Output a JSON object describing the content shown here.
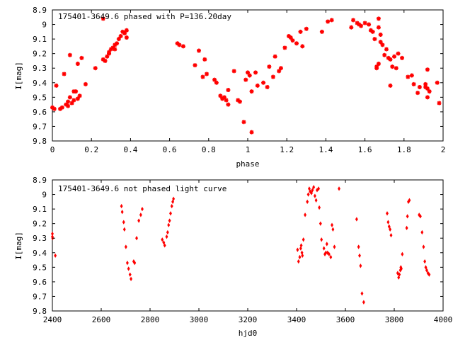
{
  "chart_data": [
    {
      "type": "scatter",
      "title": "175401-3649.6 phased with P=136.20day",
      "xlabel": "phase",
      "ylabel": "I[mag]",
      "xlim": [
        0,
        2
      ],
      "ylim": [
        8.9,
        9.8
      ],
      "y_reversed": true,
      "grid": false,
      "marker_color": "#ff0000",
      "marker": "star",
      "x_ticks": [
        "0",
        "0.2",
        "0.4",
        "0.6",
        "0.8",
        "1",
        "1.2",
        "1.4",
        "1.6",
        "1.8",
        "2"
      ],
      "y_ticks": [
        "8.9",
        "9",
        "9.1",
        "9.2",
        "9.3",
        "9.4",
        "9.5",
        "9.6",
        "9.7",
        "9.8"
      ],
      "points": [
        [
          0.0,
          9.57
        ],
        [
          0.01,
          9.58
        ],
        [
          0.02,
          9.42
        ],
        [
          0.04,
          9.58
        ],
        [
          0.05,
          9.57
        ],
        [
          0.06,
          9.34
        ],
        [
          0.07,
          9.55
        ],
        [
          0.08,
          9.53
        ],
        [
          0.08,
          9.56
        ],
        [
          0.09,
          9.5
        ],
        [
          0.09,
          9.21
        ],
        [
          0.1,
          9.54
        ],
        [
          0.11,
          9.46
        ],
        [
          0.11,
          9.52
        ],
        [
          0.12,
          9.46
        ],
        [
          0.13,
          9.51
        ],
        [
          0.13,
          9.27
        ],
        [
          0.14,
          9.49
        ],
        [
          0.15,
          9.23
        ],
        [
          0.17,
          9.41
        ],
        [
          0.22,
          9.3
        ],
        [
          0.26,
          8.96
        ],
        [
          0.26,
          9.24
        ],
        [
          0.27,
          9.25
        ],
        [
          0.28,
          9.22
        ],
        [
          0.29,
          9.2
        ],
        [
          0.29,
          9.19
        ],
        [
          0.3,
          9.17
        ],
        [
          0.31,
          9.16
        ],
        [
          0.32,
          9.14
        ],
        [
          0.32,
          9.17
        ],
        [
          0.33,
          9.13
        ],
        [
          0.34,
          9.1
        ],
        [
          0.35,
          9.08
        ],
        [
          0.36,
          9.05
        ],
        [
          0.37,
          9.06
        ],
        [
          0.38,
          9.04
        ],
        [
          0.38,
          9.09
        ],
        [
          0.64,
          9.13
        ],
        [
          0.65,
          9.14
        ],
        [
          0.67,
          9.15
        ],
        [
          0.73,
          9.28
        ],
        [
          0.75,
          9.18
        ],
        [
          0.77,
          9.36
        ],
        [
          0.78,
          9.24
        ],
        [
          0.79,
          9.34
        ],
        [
          0.83,
          9.38
        ],
        [
          0.84,
          9.4
        ],
        [
          0.86,
          9.49
        ],
        [
          0.87,
          9.51
        ],
        [
          0.88,
          9.5
        ],
        [
          0.89,
          9.52
        ],
        [
          0.9,
          9.55
        ],
        [
          0.9,
          9.45
        ],
        [
          0.93,
          9.32
        ],
        [
          0.95,
          9.52
        ],
        [
          0.96,
          9.53
        ],
        [
          0.98,
          9.67
        ],
        [
          0.99,
          9.38
        ],
        [
          1.0,
          9.33
        ],
        [
          1.01,
          9.35
        ],
        [
          1.02,
          9.74
        ],
        [
          1.02,
          9.46
        ],
        [
          1.04,
          9.33
        ],
        [
          1.05,
          9.42
        ],
        [
          1.08,
          9.4
        ],
        [
          1.1,
          9.43
        ],
        [
          1.11,
          9.29
        ],
        [
          1.13,
          9.36
        ],
        [
          1.14,
          9.22
        ],
        [
          1.16,
          9.32
        ],
        [
          1.17,
          9.3
        ],
        [
          1.19,
          9.16
        ],
        [
          1.21,
          9.08
        ],
        [
          1.22,
          9.09
        ],
        [
          1.23,
          9.11
        ],
        [
          1.25,
          9.13
        ],
        [
          1.27,
          9.05
        ],
        [
          1.28,
          9.15
        ],
        [
          1.3,
          9.03
        ],
        [
          1.38,
          9.05
        ],
        [
          1.41,
          8.98
        ],
        [
          1.43,
          8.97
        ],
        [
          1.53,
          9.02
        ],
        [
          1.54,
          8.97
        ],
        [
          1.56,
          8.99
        ],
        [
          1.57,
          9.0
        ],
        [
          1.58,
          9.01
        ],
        [
          1.6,
          8.99
        ],
        [
          1.62,
          9.0
        ],
        [
          1.63,
          9.04
        ],
        [
          1.64,
          9.05
        ],
        [
          1.65,
          9.1
        ],
        [
          1.66,
          9.3
        ],
        [
          1.66,
          9.29
        ],
        [
          1.67,
          9.27
        ],
        [
          1.67,
          8.96
        ],
        [
          1.67,
          9.02
        ],
        [
          1.68,
          9.12
        ],
        [
          1.68,
          9.07
        ],
        [
          1.69,
          9.14
        ],
        [
          1.7,
          9.21
        ],
        [
          1.71,
          9.17
        ],
        [
          1.72,
          9.23
        ],
        [
          1.73,
          9.24
        ],
        [
          1.73,
          9.42
        ],
        [
          1.74,
          9.29
        ],
        [
          1.75,
          9.22
        ],
        [
          1.76,
          9.3
        ],
        [
          1.77,
          9.2
        ],
        [
          1.79,
          9.23
        ],
        [
          1.82,
          9.36
        ],
        [
          1.84,
          9.35
        ],
        [
          1.85,
          9.41
        ],
        [
          1.87,
          9.47
        ],
        [
          1.88,
          9.43
        ],
        [
          1.91,
          9.41
        ],
        [
          1.91,
          9.43
        ],
        [
          1.92,
          9.31
        ],
        [
          1.92,
          9.44
        ],
        [
          1.92,
          9.5
        ],
        [
          1.93,
          9.46
        ],
        [
          1.97,
          9.4
        ],
        [
          1.98,
          9.54
        ]
      ]
    },
    {
      "type": "scatter",
      "title": "175401-3649.6 not phased light curve",
      "xlabel": "hjd0",
      "ylabel": "I[mag]",
      "xlim": [
        2400,
        4000
      ],
      "ylim": [
        8.9,
        9.8
      ],
      "y_reversed": true,
      "grid": false,
      "marker_color": "#ff0000",
      "marker": "diamond",
      "x_ticks": [
        "2400",
        "2600",
        "2800",
        "3000",
        "3200",
        "3400",
        "3600",
        "3800",
        "4000"
      ],
      "y_ticks": [
        "8.9",
        "9",
        "9.1",
        "9.2",
        "9.3",
        "9.4",
        "9.5",
        "9.6",
        "9.7",
        "9.8"
      ],
      "points": [
        [
          2400,
          9.27
        ],
        [
          2400,
          9.29
        ],
        [
          2401,
          9.3
        ],
        [
          2412,
          9.42
        ],
        [
          2683,
          9.08
        ],
        [
          2686,
          9.12
        ],
        [
          2692,
          9.19
        ],
        [
          2695,
          9.24
        ],
        [
          2701,
          9.36
        ],
        [
          2707,
          9.47
        ],
        [
          2712,
          9.51
        ],
        [
          2718,
          9.55
        ],
        [
          2722,
          9.58
        ],
        [
          2733,
          9.46
        ],
        [
          2737,
          9.47
        ],
        [
          2745,
          9.3
        ],
        [
          2754,
          9.18
        ],
        [
          2762,
          9.14
        ],
        [
          2768,
          9.1
        ],
        [
          2850,
          9.31
        ],
        [
          2856,
          9.33
        ],
        [
          2860,
          9.35
        ],
        [
          2868,
          9.29
        ],
        [
          2872,
          9.26
        ],
        [
          2876,
          9.21
        ],
        [
          2880,
          9.18
        ],
        [
          2884,
          9.13
        ],
        [
          2889,
          9.08
        ],
        [
          2893,
          9.05
        ],
        [
          2896,
          9.03
        ],
        [
          3404,
          9.38
        ],
        [
          3408,
          9.46
        ],
        [
          3413,
          9.43
        ],
        [
          3417,
          9.37
        ],
        [
          3419,
          9.35
        ],
        [
          3422,
          9.4
        ],
        [
          3424,
          9.42
        ],
        [
          3428,
          9.31
        ],
        [
          3435,
          9.14
        ],
        [
          3444,
          9.05
        ],
        [
          3448,
          9.0
        ],
        [
          3452,
          8.96
        ],
        [
          3456,
          8.98
        ],
        [
          3461,
          8.99
        ],
        [
          3465,
          8.97
        ],
        [
          3470,
          8.95
        ],
        [
          3475,
          9.01
        ],
        [
          3480,
          9.04
        ],
        [
          3484,
          8.97
        ],
        [
          3490,
          8.96
        ],
        [
          3493,
          9.09
        ],
        [
          3498,
          9.2
        ],
        [
          3502,
          9.31
        ],
        [
          3512,
          9.37
        ],
        [
          3516,
          9.41
        ],
        [
          3520,
          9.4
        ],
        [
          3524,
          9.34
        ],
        [
          3527,
          9.4
        ],
        [
          3533,
          9.41
        ],
        [
          3540,
          9.43
        ],
        [
          3545,
          9.21
        ],
        [
          3549,
          9.24
        ],
        [
          3555,
          9.36
        ],
        [
          3574,
          8.96
        ],
        [
          3646,
          9.17
        ],
        [
          3654,
          9.36
        ],
        [
          3658,
          9.42
        ],
        [
          3662,
          9.49
        ],
        [
          3668,
          9.68
        ],
        [
          3675,
          9.74
        ],
        [
          3771,
          9.13
        ],
        [
          3775,
          9.19
        ],
        [
          3779,
          9.22
        ],
        [
          3783,
          9.24
        ],
        [
          3787,
          9.28
        ],
        [
          3814,
          9.54
        ],
        [
          3818,
          9.57
        ],
        [
          3821,
          9.55
        ],
        [
          3825,
          9.52
        ],
        [
          3827,
          9.5
        ],
        [
          3829,
          9.51
        ],
        [
          3833,
          9.41
        ],
        [
          3851,
          9.23
        ],
        [
          3854,
          9.15
        ],
        [
          3858,
          9.05
        ],
        [
          3862,
          9.04
        ],
        [
          3902,
          9.14
        ],
        [
          3907,
          9.15
        ],
        [
          3914,
          9.26
        ],
        [
          3920,
          9.36
        ],
        [
          3925,
          9.46
        ],
        [
          3929,
          9.5
        ],
        [
          3933,
          9.52
        ],
        [
          3938,
          9.54
        ],
        [
          3943,
          9.55
        ]
      ]
    }
  ]
}
